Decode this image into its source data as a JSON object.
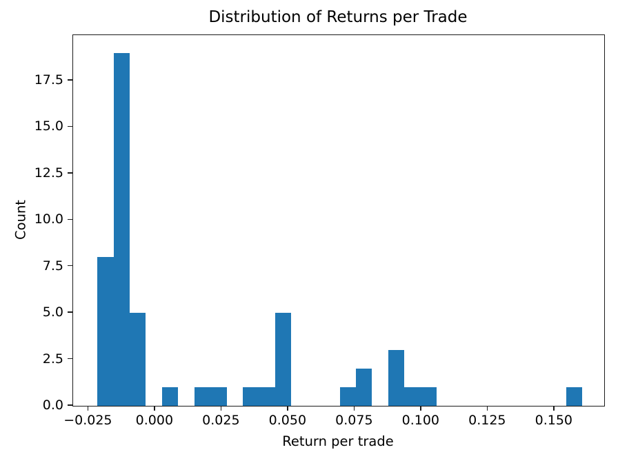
{
  "chart_data": {
    "type": "bar",
    "subtype": "histogram",
    "title": "Distribution of Returns per Trade",
    "xlabel": "Return per trade",
    "ylabel": "Count",
    "bar_color": "#1f77b4",
    "axis_color": "#000000",
    "grid": false,
    "legend": false,
    "xlim": [
      -0.0308,
      0.1687
    ],
    "ylim": [
      0,
      19.95
    ],
    "bin_edges": [
      -0.0217,
      -0.01563,
      -0.00956,
      -0.00349,
      0.00258,
      0.00865,
      0.01472,
      0.02079,
      0.02686,
      0.03293,
      0.039,
      0.04507,
      0.05114,
      0.05721,
      0.06328,
      0.06935,
      0.07542,
      0.08149,
      0.08756,
      0.09363,
      0.0997,
      0.10577,
      0.11184,
      0.11791,
      0.12398,
      0.13005,
      0.13612,
      0.14219,
      0.14826,
      0.15433,
      0.1604
    ],
    "counts": [
      8,
      19,
      5,
      0,
      1,
      0,
      1,
      1,
      0,
      1,
      1,
      5,
      0,
      0,
      0,
      1,
      2,
      0,
      3,
      1,
      1,
      0,
      0,
      0,
      0,
      0,
      0,
      0,
      0,
      1
    ],
    "x_ticks": [
      {
        "value": -0.025,
        "label": "−0.025"
      },
      {
        "value": 0.0,
        "label": "0.000"
      },
      {
        "value": 0.025,
        "label": "0.025"
      },
      {
        "value": 0.05,
        "label": "0.050"
      },
      {
        "value": 0.075,
        "label": "0.075"
      },
      {
        "value": 0.1,
        "label": "0.100"
      },
      {
        "value": 0.125,
        "label": "0.125"
      },
      {
        "value": 0.15,
        "label": "0.150"
      }
    ],
    "y_ticks": [
      {
        "value": 0,
        "label": "0.0"
      },
      {
        "value": 2.5,
        "label": "2.5"
      },
      {
        "value": 5,
        "label": "5.0"
      },
      {
        "value": 7.5,
        "label": "7.5"
      },
      {
        "value": 10,
        "label": "10.0"
      },
      {
        "value": 12.5,
        "label": "12.5"
      },
      {
        "value": 15,
        "label": "15.0"
      },
      {
        "value": 17.5,
        "label": "17.5"
      }
    ]
  }
}
